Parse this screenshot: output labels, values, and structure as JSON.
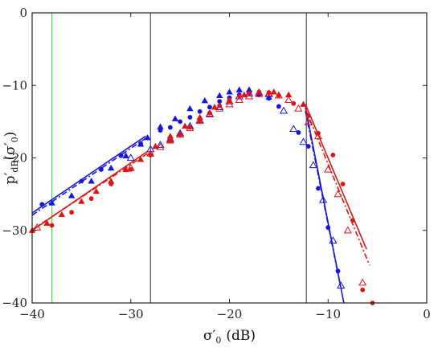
{
  "chart_data": {
    "type": "scatter",
    "xlabel": {
      "main": "σ′",
      "sub": "0",
      "unit": "(dB)"
    },
    "ylabel": {
      "main": "p′",
      "sub": "dB",
      "arg_open": "(σ′",
      "arg_sub": "0",
      "arg_close": ")"
    },
    "xlim": [
      -40,
      0
    ],
    "ylim": [
      -40,
      0
    ],
    "x_ticks": [
      -40,
      -30,
      -20,
      -10,
      0
    ],
    "y_ticks": [
      0,
      -10,
      -20,
      -30,
      -40
    ],
    "grid": false,
    "vertical_lines": [
      {
        "x": -38,
        "color": "#44dd44"
      },
      {
        "x": -28,
        "color": "#555555"
      },
      {
        "x": -12.2,
        "color": "#555555"
      }
    ],
    "series": [
      {
        "color": "#1515dd",
        "marker": "triangle-filled",
        "points": [
          [
            -38,
            -26.2
          ],
          [
            -36,
            -25.2
          ],
          [
            -34,
            -23.2
          ],
          [
            -32,
            -21.4
          ],
          [
            -30.5,
            -19.7
          ],
          [
            -29,
            -18.1
          ],
          [
            -28.3,
            -17.2
          ],
          [
            -27,
            -15.7
          ],
          [
            -25.5,
            -14.6
          ],
          [
            -24,
            -13.2
          ],
          [
            -22.5,
            -12.1
          ],
          [
            -21,
            -11.4
          ],
          [
            -20,
            -10.9
          ],
          [
            -19,
            -10.6
          ],
          [
            -18,
            -10.6
          ],
          [
            -17,
            -11.0
          ],
          [
            -16,
            -11.6
          ]
        ]
      },
      {
        "color": "#1515dd",
        "marker": "circle-filled",
        "points": [
          [
            -39,
            -26.4
          ],
          [
            -35,
            -23.2
          ],
          [
            -33,
            -21.6
          ],
          [
            -31,
            -19.7
          ],
          [
            -29,
            -18.0
          ],
          [
            -27,
            -16.2
          ],
          [
            -26,
            -15.8
          ],
          [
            -25,
            -15.0
          ],
          [
            -24,
            -14.4
          ],
          [
            -23,
            -13.6
          ],
          [
            -22,
            -13.0
          ],
          [
            -21,
            -12.2
          ],
          [
            -20,
            -11.7
          ],
          [
            -19,
            -11.3
          ],
          [
            -18,
            -11.0
          ],
          [
            -17,
            -11.3
          ],
          [
            -16,
            -11.8
          ],
          [
            -15,
            -12.9
          ],
          [
            -13,
            -16.5
          ],
          [
            -12,
            -18.4
          ],
          [
            -11,
            -24.2
          ],
          [
            -10,
            -29.6
          ],
          [
            -9,
            -35.6
          ]
        ]
      },
      {
        "color": "#1515dd",
        "marker": "triangle-open",
        "points": [
          [
            -30,
            -20.0
          ],
          [
            -28,
            -18.8
          ],
          [
            -27,
            -18.2
          ],
          [
            -26,
            -17.4
          ],
          [
            -25,
            -16.6
          ],
          [
            -24,
            -15.6
          ],
          [
            -23,
            -14.8
          ],
          [
            -22,
            -13.9
          ],
          [
            -21,
            -13.0
          ],
          [
            -20,
            -12.2
          ],
          [
            -19,
            -11.5
          ],
          [
            -18,
            -11.1
          ],
          [
            -17,
            -11.0
          ],
          [
            -16,
            -11.2
          ],
          [
            -14.5,
            -13.5
          ],
          [
            -13.5,
            -16.0
          ],
          [
            -12.5,
            -17.8
          ],
          [
            -11.5,
            -21.0
          ],
          [
            -10.5,
            -25.8
          ],
          [
            -9.5,
            -31.4
          ],
          [
            -8.7,
            -37.6
          ]
        ]
      },
      {
        "color": "#dd1515",
        "marker": "triangle-filled",
        "points": [
          [
            -40,
            -30.0
          ],
          [
            -38.5,
            -29.0
          ],
          [
            -37,
            -27.8
          ],
          [
            -35,
            -26.0
          ],
          [
            -33.5,
            -24.6
          ],
          [
            -32,
            -23.2
          ],
          [
            -30.5,
            -21.6
          ],
          [
            -29,
            -20.2
          ],
          [
            -27.5,
            -18.4
          ],
          [
            -26,
            -17.0
          ],
          [
            -24.5,
            -15.6
          ],
          [
            -23,
            -14.4
          ],
          [
            -21.5,
            -13.0
          ],
          [
            -20,
            -12.1
          ],
          [
            -18.5,
            -11.3
          ],
          [
            -17,
            -10.9
          ],
          [
            -15.5,
            -10.9
          ],
          [
            -14,
            -11.3
          ],
          [
            -12.5,
            -12.6
          ]
        ]
      },
      {
        "color": "#dd1515",
        "marker": "circle-filled",
        "points": [
          [
            -38,
            -29.3
          ],
          [
            -36,
            -27.5
          ],
          [
            -34,
            -25.6
          ],
          [
            -32,
            -23.6
          ],
          [
            -30,
            -21.6
          ],
          [
            -28,
            -19.6
          ],
          [
            -26,
            -17.7
          ],
          [
            -25,
            -16.8
          ],
          [
            -24,
            -15.8
          ],
          [
            -23,
            -14.8
          ],
          [
            -22,
            -13.8
          ],
          [
            -21,
            -12.8
          ],
          [
            -20,
            -12.0
          ],
          [
            -19,
            -11.5
          ],
          [
            -18,
            -11.1
          ],
          [
            -17,
            -10.9
          ],
          [
            -16,
            -11.0
          ],
          [
            -15,
            -11.4
          ],
          [
            -13.5,
            -12.5
          ],
          [
            -12,
            -14.2
          ],
          [
            -11,
            -16.6
          ],
          [
            -9.5,
            -19.6
          ],
          [
            -8.5,
            -23.6
          ],
          [
            -7.5,
            -28.6
          ],
          [
            -6.5,
            -38.2
          ],
          [
            -5.5,
            -40.0
          ]
        ]
      },
      {
        "color": "#dd1515",
        "marker": "triangle-open",
        "points": [
          [
            -39.5,
            -29.6
          ],
          [
            -30,
            -21.4
          ],
          [
            -28,
            -19.4
          ],
          [
            -27,
            -18.5
          ],
          [
            -26,
            -17.6
          ],
          [
            -25,
            -16.8
          ],
          [
            -24,
            -15.9
          ],
          [
            -23,
            -14.9
          ],
          [
            -22,
            -14.0
          ],
          [
            -21,
            -13.2
          ],
          [
            -20,
            -12.6
          ],
          [
            -19,
            -12.0
          ],
          [
            -18,
            -11.5
          ],
          [
            -17,
            -11.2
          ],
          [
            -16,
            -11.1
          ],
          [
            -15,
            -11.4
          ],
          [
            -14,
            -12.0
          ],
          [
            -13,
            -13.2
          ],
          [
            -12,
            -15.1
          ],
          [
            -11,
            -17.0
          ],
          [
            -10,
            -21.6
          ],
          [
            -9,
            -25.0
          ],
          [
            -8,
            -30.0
          ],
          [
            -6.5,
            -37.2
          ]
        ]
      }
    ],
    "fit_lines": [
      {
        "color": "#1515dd",
        "dash": "solid",
        "points": [
          [
            -40,
            -27.6
          ],
          [
            -28.5,
            -17.0
          ]
        ]
      },
      {
        "color": "#1515dd",
        "dash": "dashdot",
        "points": [
          [
            -40,
            -27.9
          ],
          [
            -28.5,
            -17.3
          ]
        ]
      },
      {
        "color": "#dd1515",
        "dash": "solid",
        "points": [
          [
            -40,
            -30.0
          ],
          [
            -28.3,
            -19.1
          ]
        ]
      },
      {
        "color": "#dd1515",
        "dash": "dashdot",
        "points": [
          [
            -40,
            -29.9
          ],
          [
            -28.3,
            -19.4
          ]
        ]
      },
      {
        "color": "#1515dd",
        "dash": "solid",
        "points": [
          [
            -12.3,
            -13.0
          ],
          [
            -8.4,
            -40.0
          ]
        ]
      },
      {
        "color": "#1515dd",
        "dash": "dashdot",
        "points": [
          [
            -12.3,
            -13.5
          ],
          [
            -8.7,
            -38.0
          ]
        ]
      },
      {
        "color": "#dd1515",
        "dash": "solid",
        "points": [
          [
            -12.3,
            -12.6
          ],
          [
            -6.1,
            -32.6
          ]
        ]
      },
      {
        "color": "#dd1515",
        "dash": "dashdot",
        "points": [
          [
            -12.3,
            -13.2
          ],
          [
            -5.8,
            -34.8
          ]
        ]
      }
    ]
  }
}
